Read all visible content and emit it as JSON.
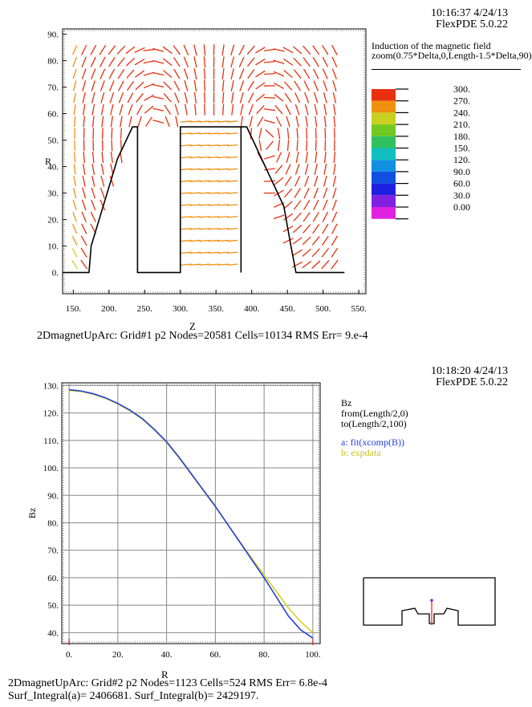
{
  "top_panel": {
    "timestamp": "10:16:37 4/24/13",
    "version": "FlexPDE 5.0.22",
    "plot_title": "Induction of the magnetic field",
    "plot_subtitle": "zoom(0.75*Delta,0,Length-1.5*Delta,90)",
    "status_line": "2DmagnetUpArc:  Grid#1  p2  Nodes=20581 Cells=10134 RMS Err= 9.e-4",
    "status_overlay_letter": "Z"
  },
  "bottom_panel": {
    "timestamp": "10:18:20 4/24/13",
    "version": "FlexPDE 5.0.22",
    "plot_title": "Bz",
    "from_text": "from(Length/2,0)",
    "to_text": "to(Length/2,100)",
    "legend_a": "a: fit(xcomp(B))",
    "legend_b": "b: expdata",
    "status_line": "2DmagnetUpArc:  Grid#2  p2  Nodes=1123 Cells=524 RMS Err= 6.8e-4",
    "status_overlay_letter": "R",
    "integral_line": "Surf_Integral(a)=  2406681.  Surf_Integral(b)=  2429197."
  },
  "chart_data": [
    {
      "type": "vector-field",
      "title": "",
      "xlabel": "Z",
      "ylabel": "R",
      "xlim": [
        135,
        560
      ],
      "ylim": [
        -8,
        92
      ],
      "x_ticks": [
        "150.",
        "200.",
        "250.",
        "300.",
        "350.",
        "400.",
        "450.",
        "500.",
        "550."
      ],
      "y_ticks": [
        "0.",
        "10.",
        "20.",
        "30.",
        "40.",
        "50.",
        "60.",
        "70.",
        "80.",
        "90."
      ],
      "grid": false,
      "legend_placement": "right",
      "legend_values": [
        "300.",
        "270.",
        "240.",
        "210.",
        "180.",
        "150.",
        "120.",
        "90.0",
        "60.0",
        "30.0",
        "0.00"
      ],
      "legend_colors": [
        "#e83010",
        "#f09010",
        "#c8d020",
        "#70c820",
        "#30c060",
        "#10c0c0",
        "#1090e0",
        "#1050e0",
        "#2020e0",
        "#8020e0",
        "#e020e0"
      ],
      "geometry_outline": [
        [
          135,
          0
        ],
        [
          172,
          0
        ],
        [
          175,
          10
        ],
        [
          212,
          43
        ],
        [
          233,
          55
        ],
        [
          240,
          55
        ],
        [
          240,
          0
        ],
        [
          300,
          0
        ],
        [
          300,
          55
        ],
        [
          385,
          55
        ],
        [
          385,
          0
        ],
        [
          385,
          55
        ],
        [
          393,
          55
        ],
        [
          445,
          25
        ],
        [
          455,
          10
        ],
        [
          462,
          0
        ],
        [
          530,
          0
        ]
      ]
    },
    {
      "type": "line",
      "title": "Bz",
      "xlabel": "R",
      "ylabel": "Bz",
      "xlim": [
        0,
        100
      ],
      "ylim": [
        36,
        131
      ],
      "x_ticks": [
        "0.",
        "20.",
        "40.",
        "60.",
        "80.",
        "100."
      ],
      "y_ticks": [
        "40.",
        "50.",
        "60.",
        "70.",
        "80.",
        "90.",
        "100.",
        "110.",
        "120.",
        "130."
      ],
      "grid": true,
      "legend_placement": "right",
      "series": [
        {
          "name": "a: fit(xcomp(B))",
          "color": "#2040e0",
          "x": [
            0,
            5,
            10,
            15,
            20,
            25,
            30,
            35,
            40,
            45,
            50,
            55,
            60,
            65,
            70,
            75,
            80,
            85,
            90,
            95,
            100
          ],
          "y": [
            128.5,
            128,
            127,
            125.5,
            123.5,
            121,
            118,
            114,
            109.5,
            104,
            98,
            92,
            86,
            79.5,
            73,
            66.5,
            60,
            53,
            46,
            41,
            38
          ]
        },
        {
          "name": "b: expdata",
          "color": "#d8d020",
          "x": [
            0,
            5,
            10,
            15,
            20,
            25,
            30,
            35,
            40,
            45,
            50,
            55,
            60,
            65,
            70,
            75,
            80,
            85,
            90,
            95,
            100
          ],
          "y": [
            128.2,
            127.8,
            126.8,
            125.3,
            123.3,
            120.8,
            117.8,
            113.8,
            109.3,
            103.8,
            97.8,
            91.8,
            85.8,
            79.5,
            73.2,
            67,
            61,
            55,
            49,
            44,
            40
          ]
        }
      ]
    }
  ]
}
